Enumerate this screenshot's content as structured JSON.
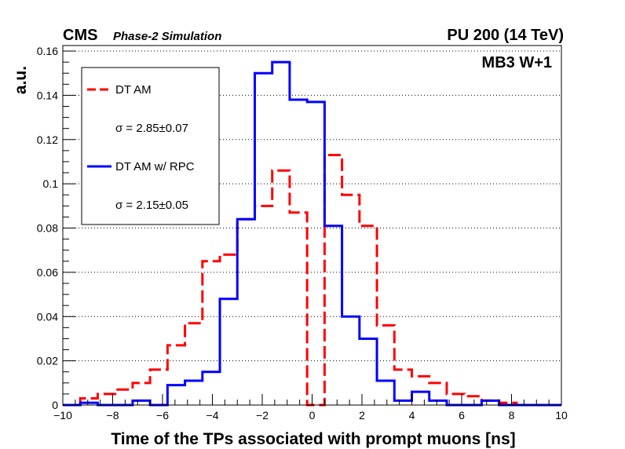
{
  "header": {
    "experiment": "CMS",
    "subtitle": "Phase-2 Simulation",
    "conditions": "PU 200 (14 TeV)",
    "region": "MB3 W+1"
  },
  "chart_data": {
    "type": "histogram",
    "xlabel": "Time of the TPs associated with prompt muons [ns]",
    "ylabel": "a.u.",
    "xlim": [
      -10,
      10
    ],
    "ylim": [
      0,
      0.1625
    ],
    "xticks": [
      "−10",
      "−8",
      "−6",
      "−4",
      "−2",
      "0",
      "2",
      "4",
      "6",
      "8",
      "10"
    ],
    "yticks": [
      "0",
      "0.02",
      "0.04",
      "0.06",
      "0.08",
      "0.1",
      "0.12",
      "0.14",
      "0.16"
    ],
    "grid": "horizontal dotted",
    "legend_position": "top-left",
    "bin_edges": [
      -10,
      -9.3,
      -8.6,
      -7.9,
      -7.2,
      -6.5,
      -5.8,
      -5.1,
      -4.4,
      -3.7,
      -3.0,
      -2.3,
      -1.6,
      -0.9,
      -0.2,
      0.5,
      1.2,
      1.9,
      2.6,
      3.3,
      4.0,
      4.7,
      5.4,
      6.1,
      6.8,
      7.5,
      8.2,
      8.9,
      9.6,
      10
    ],
    "series": [
      {
        "name": "DT AM",
        "sigma": "σ = 2.85±0.07",
        "color": "#ff0000",
        "style": "dashed",
        "values": [
          0,
          0.003,
          0.005,
          0.007,
          0.01,
          0.016,
          0.027,
          0.037,
          0.065,
          0.068,
          0.084,
          0.09,
          0.106,
          0.087,
          0,
          0.113,
          0.095,
          0.081,
          0.036,
          0.016,
          0.013,
          0.01,
          0.005,
          0.004,
          0.002,
          0.001,
          0,
          0,
          0
        ]
      },
      {
        "name": "DT AM w/ RPC",
        "sigma": "σ = 2.15±0.05",
        "color": "#0000ff",
        "style": "solid",
        "values": [
          0,
          0.001,
          0,
          0,
          0.002,
          0,
          0.009,
          0.011,
          0.015,
          0.048,
          0.084,
          0.15,
          0.155,
          0.138,
          0.137,
          0.081,
          0.04,
          0.03,
          0.011,
          0.002,
          0.006,
          0.002,
          0,
          0,
          0.002,
          0,
          0,
          0,
          0
        ]
      }
    ]
  },
  "colors": {
    "dt_am": "#ff0000",
    "dt_am_rpc": "#0000ff"
  }
}
